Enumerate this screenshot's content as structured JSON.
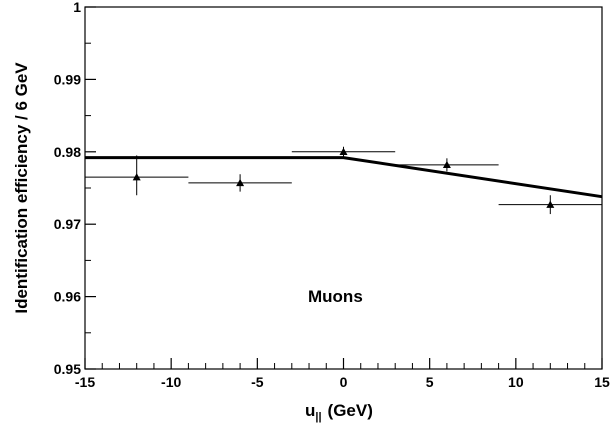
{
  "chart_data": {
    "type": "scatter",
    "xlabel_main": "u",
    "xlabel_sub": "||",
    "xlabel_unit": "(GeV)",
    "ylabel": "Identification efficiency / 6 GeV",
    "annotation": "Muons",
    "xlim": [
      -15,
      15
    ],
    "ylim": [
      0.95,
      1.0
    ],
    "x_ticks": [
      -15,
      -10,
      -5,
      0,
      5,
      10,
      15
    ],
    "x_tick_labels": [
      "-15",
      "-10",
      "-5",
      "0",
      "5",
      "10",
      "15"
    ],
    "y_ticks": [
      0.95,
      0.96,
      0.97,
      0.98,
      0.99,
      1.0
    ],
    "y_tick_labels": [
      "0.95",
      "0.96",
      "0.97",
      "0.98",
      "0.99",
      "1"
    ],
    "points": [
      {
        "x": -12,
        "y": 0.9765,
        "xerr": 3,
        "yerr_up": 0.003,
        "yerr_down": 0.0025
      },
      {
        "x": -6,
        "y": 0.9757,
        "xerr": 3,
        "yerr_up": 0.0012,
        "yerr_down": 0.0012
      },
      {
        "x": 0,
        "y": 0.98,
        "xerr": 3,
        "yerr_up": 0.0007,
        "yerr_down": 0.0007
      },
      {
        "x": 6,
        "y": 0.9782,
        "xerr": 3,
        "yerr_up": 0.0009,
        "yerr_down": 0.0009
      },
      {
        "x": 12,
        "y": 0.9727,
        "xerr": 3,
        "yerr_up": 0.0013,
        "yerr_down": 0.0013
      }
    ],
    "fit": {
      "name": "fit",
      "x": [
        -15,
        0,
        15
      ],
      "y": [
        0.9792,
        0.9792,
        0.9738
      ]
    },
    "grid": false
  }
}
